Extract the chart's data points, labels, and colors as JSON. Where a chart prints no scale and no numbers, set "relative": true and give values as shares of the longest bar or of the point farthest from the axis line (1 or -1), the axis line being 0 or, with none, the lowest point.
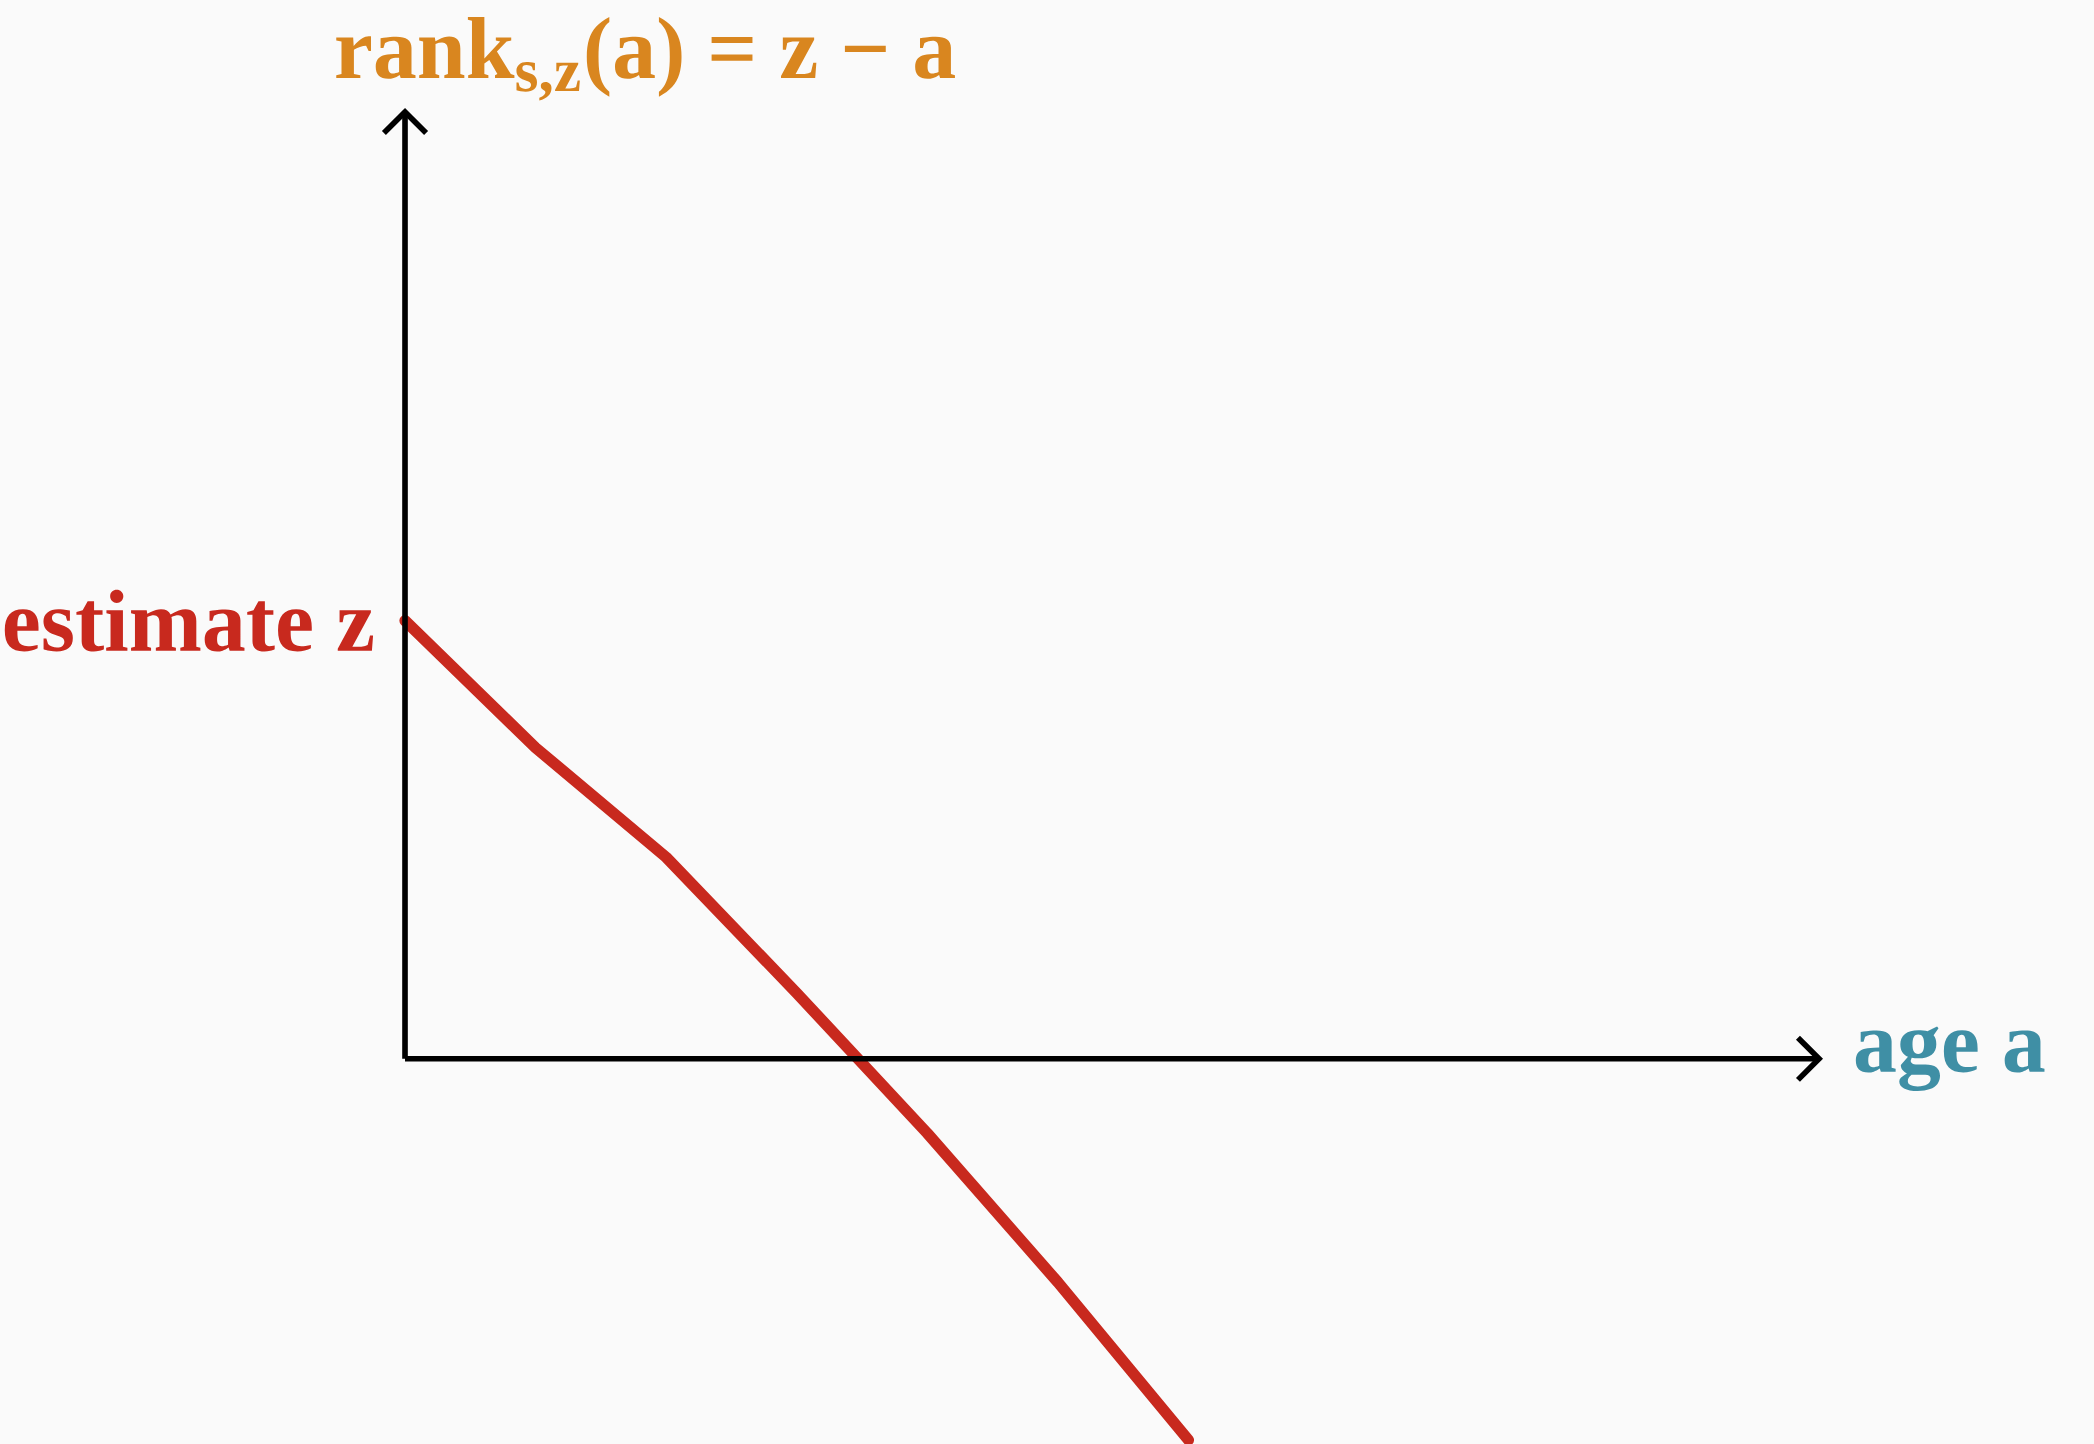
{
  "chart_data": {
    "type": "line",
    "relative": true,
    "xlabel": "age a",
    "annotations": [
      "rank$_{s,z}$(a) = z − a",
      "estimate z"
    ],
    "categories": [
      null,
      null,
      null,
      null,
      null,
      null,
      null,
      null,
      null,
      null,
      null
    ],
    "values": [
      1.0,
      0.71,
      0.46,
      0.15,
      -0.17,
      -0.51,
      -0.87,
      null,
      null,
      null,
      null
    ],
    "color": "#c8291e"
  }
}
